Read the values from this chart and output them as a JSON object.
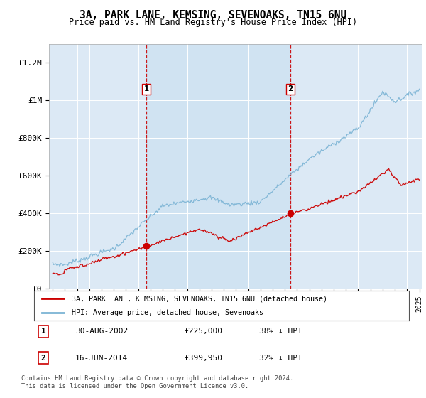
{
  "title1": "3A, PARK LANE, KEMSING, SEVENOAKS, TN15 6NU",
  "title2": "Price paid vs. HM Land Registry's House Price Index (HPI)",
  "plot_bg": "#dce9f5",
  "ylim": [
    0,
    1300000
  ],
  "yticks": [
    0,
    200000,
    400000,
    600000,
    800000,
    1000000,
    1200000
  ],
  "ytick_labels": [
    "£0",
    "£200K",
    "£400K",
    "£600K",
    "£800K",
    "£1M",
    "£1.2M"
  ],
  "sale1": {
    "date": 2002.66,
    "price": 225000,
    "label": "1",
    "text": "30-AUG-2002",
    "price_text": "£225,000",
    "hpi_text": "38% ↓ HPI"
  },
  "sale2": {
    "date": 2014.46,
    "price": 399950,
    "label": "2",
    "text": "16-JUN-2014",
    "price_text": "£399,950",
    "hpi_text": "32% ↓ HPI"
  },
  "legend_line1": "3A, PARK LANE, KEMSING, SEVENOAKS, TN15 6NU (detached house)",
  "legend_line2": "HPI: Average price, detached house, Sevenoaks",
  "footer1": "Contains HM Land Registry data © Crown copyright and database right 2024.",
  "footer2": "This data is licensed under the Open Government Licence v3.0.",
  "hpi_color": "#7ab3d4",
  "price_color": "#cc0000",
  "vline_color": "#cc0000",
  "shade_color": "#c8dff0",
  "xlim_left": 1994.7,
  "xlim_right": 2025.2
}
